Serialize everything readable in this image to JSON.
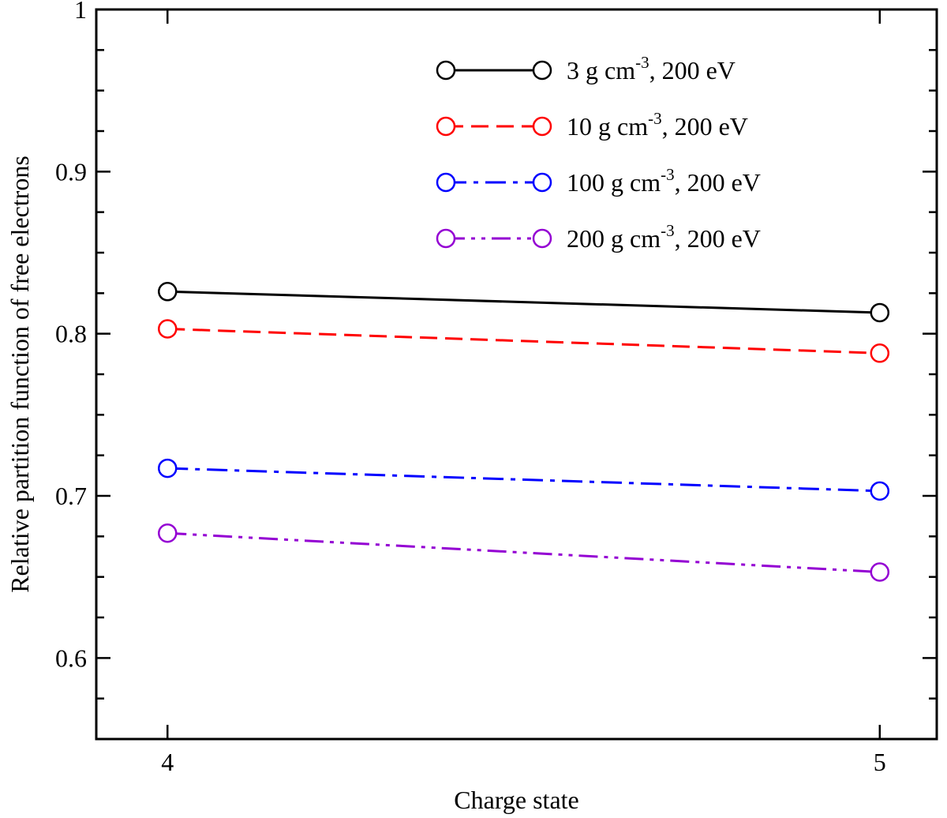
{
  "chart_data": {
    "type": "line",
    "title": "",
    "xlabel": "Charge state",
    "ylabel": "Relative partition function of free electrons",
    "xlim": [
      3.9,
      5.08
    ],
    "ylim": [
      0.55,
      1.0
    ],
    "x_ticks": [
      4,
      5
    ],
    "x_tick_labels": [
      "4",
      "5"
    ],
    "y_major_ticks": [
      0.6,
      0.7,
      0.8,
      0.9,
      1.0
    ],
    "y_minor_ticks": [
      0.55,
      0.575,
      0.625,
      0.65,
      0.675,
      0.725,
      0.75,
      0.775,
      0.825,
      0.85,
      0.875,
      0.925,
      0.95,
      0.975
    ],
    "y_tick_labels": [
      "0.6",
      "0.7",
      "0.8",
      "0.9",
      "1"
    ],
    "legend_position": "top-right",
    "series": [
      {
        "name": "3 g cm-3, 200 eV",
        "label_parts": [
          "3 g cm",
          "-3",
          ", 200 eV"
        ],
        "color": "#000000",
        "dash": "solid",
        "x": [
          4,
          5
        ],
        "values": [
          0.826,
          0.813
        ]
      },
      {
        "name": "10 g cm-3, 200 eV",
        "label_parts": [
          "10 g cm",
          "-3",
          ", 200 eV"
        ],
        "color": "#ff0000",
        "dash": "dashed",
        "x": [
          4,
          5
        ],
        "values": [
          0.803,
          0.788
        ]
      },
      {
        "name": "100  g cm-3, 200 eV",
        "label_parts": [
          "100  g cm",
          "-3",
          ", 200 eV"
        ],
        "color": "#0000ff",
        "dash": "dashdot",
        "x": [
          4,
          5
        ],
        "values": [
          0.717,
          0.703
        ]
      },
      {
        "name": "200  g cm-3, 200 eV",
        "label_parts": [
          "200  g cm",
          "-3",
          ", 200 eV"
        ],
        "color": "#9400d3",
        "dash": "dashdotdot",
        "x": [
          4,
          5
        ],
        "values": [
          0.677,
          0.653
        ]
      }
    ]
  }
}
